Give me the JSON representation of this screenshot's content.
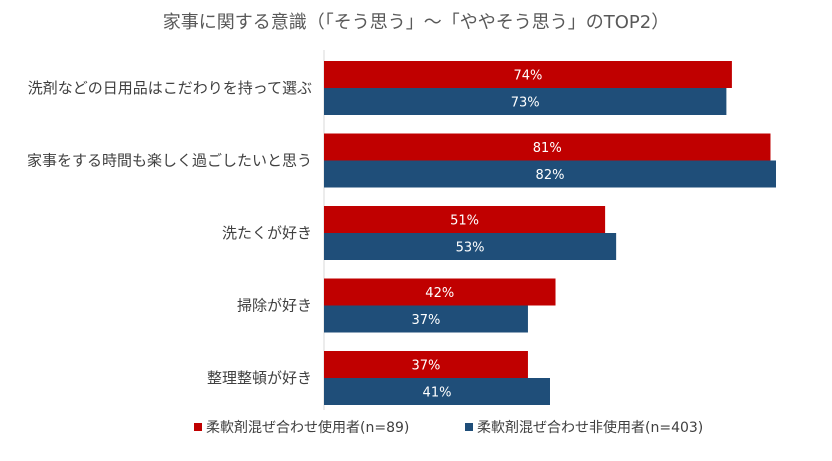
{
  "chart_data": {
    "type": "bar",
    "orientation": "horizontal",
    "title": "家事に関する意識（「そう思う」～「ややそう思う」のTOP2）",
    "categories": [
      "洗剤などの日用品はこだわりを持って選ぶ",
      "家事をする時間も楽しく過ごしたいと思う",
      "洗たくが好き",
      "掃除が好き",
      "整理整頓が好き"
    ],
    "series": [
      {
        "name": "柔軟剤混ぜ合わせ使用者(n=89)",
        "color": "#C00000",
        "values": [
          74,
          81,
          51,
          42,
          37
        ]
      },
      {
        "name": "柔軟剤混ぜ合わせ非使用者(n=403)",
        "color": "#1F4E79",
        "values": [
          73,
          82,
          53,
          37,
          41
        ]
      }
    ],
    "value_suffix": "%",
    "xlim": [
      0,
      82
    ],
    "grid": false,
    "legend": "bottom"
  }
}
